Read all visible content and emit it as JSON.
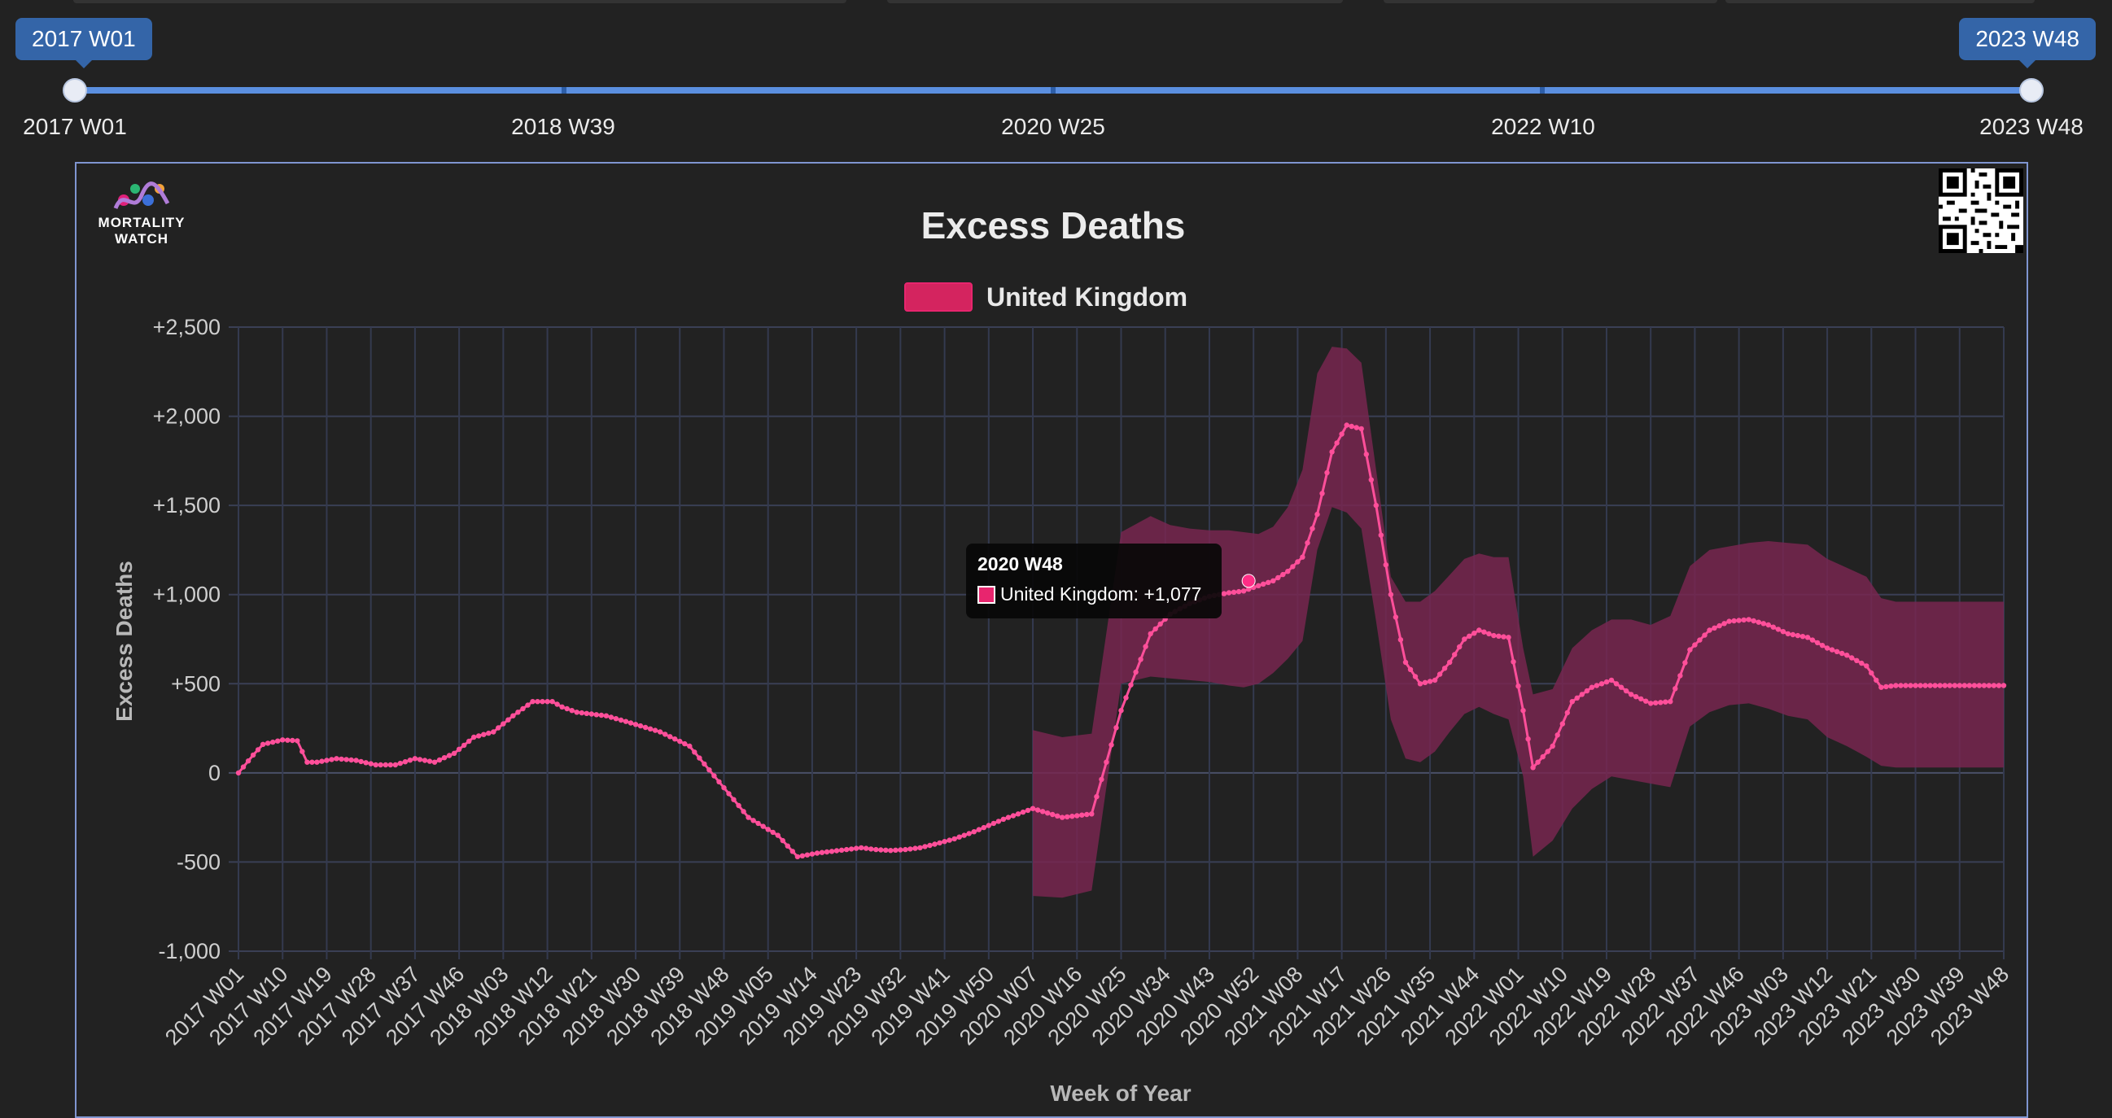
{
  "range_slider": {
    "start_value": "2017 W01",
    "end_value": "2023 W48",
    "tick_labels": [
      "2017 W01",
      "2018 W39",
      "2020 W25",
      "2022 W10",
      "2023 W48"
    ]
  },
  "logo": {
    "line1": "MORTALITY",
    "line2": "WATCH"
  },
  "tooltip": {
    "title": "2020 W48",
    "label": "United Kingdom: +1,077"
  },
  "colors": {
    "background": "#222222",
    "series": "#ff4f9a",
    "band": "#7a2650",
    "grid": "#3a3f55",
    "slider": "#5b8fe0",
    "bubble": "#3465a8",
    "frame": "#7f95d0"
  },
  "icons": {
    "logo": "mortality-watch-logo",
    "qr": "qr-code"
  },
  "chart_data": {
    "type": "line",
    "title": "Excess Deaths",
    "xlabel": "Week of Year",
    "ylabel": "Excess Deaths",
    "ylim": [
      -1000,
      2500
    ],
    "yticks": [
      -1000,
      -500,
      0,
      500,
      1000,
      1500,
      2000,
      2500
    ],
    "ytick_labels": [
      "-1,000",
      "-500",
      "0",
      "+500",
      "+1,000",
      "+1,500",
      "+2,000",
      "+2,500"
    ],
    "xticks": [
      "2017 W01",
      "2017 W10",
      "2017 W19",
      "2017 W28",
      "2017 W37",
      "2017 W46",
      "2018 W03",
      "2018 W12",
      "2018 W21",
      "2018 W30",
      "2018 W39",
      "2018 W48",
      "2019 W05",
      "2019 W14",
      "2019 W23",
      "2019 W32",
      "2019 W41",
      "2019 W50",
      "2020 W07",
      "2020 W16",
      "2020 W25",
      "2020 W34",
      "2020 W43",
      "2020 W52",
      "2021 W08",
      "2021 W17",
      "2021 W26",
      "2021 W35",
      "2021 W44",
      "2022 W01",
      "2022 W10",
      "2022 W19",
      "2022 W28",
      "2022 W37",
      "2022 W46",
      "2023 W03",
      "2023 W12",
      "2023 W21",
      "2023 W30",
      "2023 W39",
      "2023 W48"
    ],
    "grid": true,
    "legend_position": "top",
    "series": [
      {
        "name": "United Kingdom",
        "color": "#ff4f9a",
        "x_index": [
          0,
          3,
          5,
          9,
          12,
          14,
          16,
          18,
          20,
          24,
          28,
          32,
          36,
          40,
          44,
          48,
          52,
          56,
          60,
          64,
          66,
          69,
          72,
          75,
          80,
          86,
          92,
          98,
          104,
          110,
          114,
          118,
          121,
          124,
          127,
          130,
          133,
          136,
          139,
          142,
          146,
          150,
          156,
          162,
          168,
          174,
          180,
          186,
          190,
          194,
          198,
          202,
          205,
          208,
          211,
          214,
          217,
          220,
          223,
          226,
          229,
          232,
          235,
          238,
          241,
          244,
          247,
          250,
          253,
          256,
          259,
          262,
          264,
          268,
          272,
          276,
          280,
          284,
          288,
          292,
          296,
          300,
          304,
          308,
          312,
          316,
          320,
          324,
          328,
          332,
          335,
          338,
          341,
          344,
          348,
          352,
          356,
          360
        ],
        "y": [
          0,
          100,
          160,
          185,
          180,
          60,
          60,
          70,
          80,
          70,
          45,
          45,
          80,
          60,
          110,
          200,
          230,
          320,
          400,
          400,
          370,
          340,
          330,
          320,
          280,
          230,
          150,
          -50,
          -250,
          -350,
          -470,
          -450,
          -440,
          -430,
          -420,
          -430,
          -435,
          -430,
          -420,
          -400,
          -370,
          -330,
          -260,
          -200,
          -250,
          -230,
          350,
          780,
          890,
          950,
          990,
          1010,
          1020,
          1050,
          1077,
          1130,
          1210,
          1450,
          1800,
          1950,
          1930,
          1500,
          1000,
          620,
          500,
          520,
          620,
          750,
          800,
          770,
          760,
          350,
          30,
          150,
          400,
          480,
          520,
          440,
          390,
          400,
          690,
          800,
          850,
          860,
          830,
          780,
          760,
          700,
          660,
          600,
          480,
          490,
          490,
          490,
          490,
          490,
          490,
          490
        ],
        "band_upper": [
          null,
          null,
          null,
          null,
          null,
          null,
          null,
          null,
          null,
          null,
          null,
          null,
          null,
          null,
          null,
          null,
          null,
          null,
          null,
          null,
          null,
          null,
          null,
          null,
          null,
          null,
          null,
          null,
          null,
          null,
          null,
          null,
          null,
          null,
          null,
          null,
          null,
          null,
          null,
          null,
          null,
          null,
          null,
          240,
          200,
          220,
          1350,
          1440,
          1390,
          1370,
          1360,
          1360,
          1350,
          1340,
          1380,
          1490,
          1700,
          2240,
          2390,
          2380,
          2300,
          1700,
          1100,
          960,
          960,
          1020,
          1110,
          1200,
          1230,
          1210,
          1210,
          700,
          440,
          470,
          700,
          800,
          860,
          860,
          830,
          880,
          1160,
          1250,
          1270,
          1290,
          1300,
          1290,
          1280,
          1200,
          1150,
          1100,
          980,
          960,
          960,
          960,
          960,
          960,
          960,
          960
        ],
        "band_lower": [
          null,
          null,
          null,
          null,
          null,
          null,
          null,
          null,
          null,
          null,
          null,
          null,
          null,
          null,
          null,
          null,
          null,
          null,
          null,
          null,
          null,
          null,
          null,
          null,
          null,
          null,
          null,
          null,
          null,
          null,
          null,
          null,
          null,
          null,
          null,
          null,
          null,
          null,
          null,
          null,
          null,
          null,
          null,
          -690,
          -700,
          -660,
          500,
          540,
          530,
          520,
          510,
          490,
          480,
          500,
          560,
          640,
          740,
          1250,
          1490,
          1460,
          1370,
          850,
          300,
          80,
          60,
          120,
          230,
          330,
          370,
          330,
          300,
          -20,
          -470,
          -380,
          -200,
          -90,
          -20,
          -40,
          -60,
          -80,
          260,
          340,
          380,
          390,
          360,
          320,
          300,
          200,
          150,
          90,
          40,
          30,
          30,
          30,
          30,
          30,
          30,
          30
        ]
      }
    ],
    "highlight": {
      "x_label": "2020 W48",
      "value": 1077
    }
  }
}
